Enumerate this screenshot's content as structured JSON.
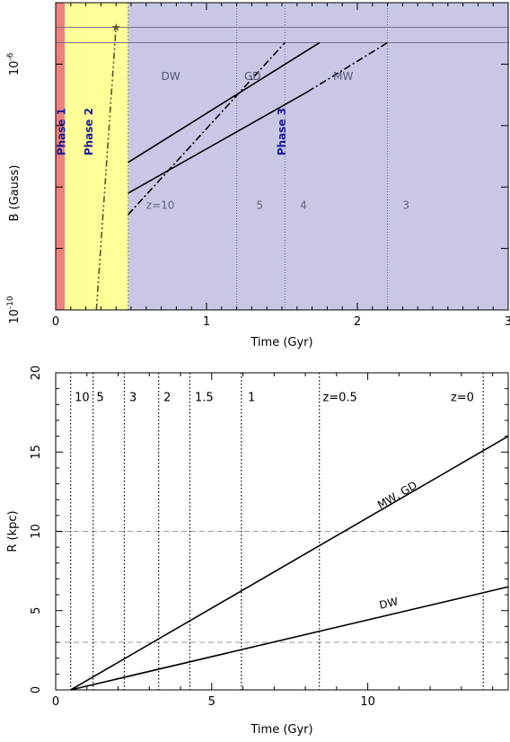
{
  "chart_data": [
    {
      "type": "line",
      "xlabel": "Time (Gyr)",
      "ylabel": "B (Gauss)",
      "xlim": [
        0,
        3
      ],
      "ylog_range": [
        -10,
        -5
      ],
      "x_ticks": [
        0,
        1,
        2,
        3
      ],
      "x_tick_labels": [
        "0",
        "1",
        "2",
        "3"
      ],
      "y_tick_labels": [
        {
          "label": "10",
          "exp": "-6",
          "logv": -6
        },
        {
          "label": "10",
          "exp": "-10",
          "logv": -10
        }
      ],
      "bands": [
        {
          "x0": 0,
          "x1": 0.06,
          "color": "#f08080"
        },
        {
          "x0": 0.06,
          "x1": 0.48,
          "color": "#ffff99"
        },
        {
          "x0": 0.48,
          "x1": 3,
          "color": "#c8c8e6"
        }
      ],
      "phase_labels": [
        {
          "text": "Phase 1",
          "x": 0.04
        },
        {
          "text": "Phase 2",
          "x": 0.22
        },
        {
          "text": "Phase 3",
          "x": 1.5
        }
      ],
      "hlines": [
        -5.4,
        -5.65
      ],
      "redshift_lines": [
        1.2,
        1.52,
        2.2
      ],
      "redshift_labels": [
        {
          "text": "z=10",
          "x": 0.6
        },
        {
          "text": "5",
          "x": 1.33
        },
        {
          "text": "4",
          "x": 1.62
        },
        {
          "text": "3",
          "x": 2.3
        }
      ],
      "series": [
        {
          "name": "DW",
          "label_at": [
            0.7,
            -6.2
          ],
          "style": "solid",
          "points": [
            [
              0.48,
              -7.6
            ],
            [
              1.75,
              -5.65
            ]
          ]
        },
        {
          "name": "GD",
          "label_at": [
            1.25,
            -6.2
          ],
          "style": "dashdot",
          "points": [
            [
              0.48,
              -8.45
            ],
            [
              1.52,
              -5.65
            ]
          ]
        },
        {
          "name": "MW",
          "label_at": [
            1.84,
            -6.2
          ],
          "style": "solid-then-dashdot",
          "points": [
            [
              0.48,
              -8.1
            ],
            [
              1.67,
              -6.45
            ],
            [
              2.2,
              -5.65
            ]
          ],
          "break_index": 1
        },
        {
          "name": "",
          "style": "dashdotdot",
          "color": "#555522",
          "points": [
            [
              0.27,
              -10
            ],
            [
              0.4,
              -5.4
            ]
          ],
          "marker": "star"
        }
      ]
    },
    {
      "type": "line",
      "xlabel": "Time (Gyr)",
      "ylabel": "R (kpc)",
      "xlim": [
        0,
        14.5
      ],
      "ylim": [
        0,
        20
      ],
      "x_ticks": [
        0,
        5,
        10
      ],
      "x_tick_labels": [
        "0",
        "5",
        "10"
      ],
      "y_ticks": [
        0,
        5,
        10,
        15,
        20
      ],
      "y_tick_labels": [
        "0",
        "5",
        "10",
        "15",
        "20"
      ],
      "hlines": [
        3,
        10
      ],
      "redshift_lines": [
        0.48,
        1.2,
        2.2,
        3.3,
        4.3,
        5.95,
        8.45,
        13.7
      ],
      "redshift_labels": [
        {
          "text": "10",
          "x": 0.55
        },
        {
          "text": "5",
          "x": 1.25
        },
        {
          "text": "3",
          "x": 2.3
        },
        {
          "text": "2",
          "x": 3.4
        },
        {
          "text": "1.5",
          "x": 4.4
        },
        {
          "text": "1",
          "x": 6.1
        },
        {
          "text": "z=0.5",
          "x": 8.5
        },
        {
          "text": "z=0",
          "x": 12.6
        }
      ],
      "series": [
        {
          "name": "MW, GD",
          "label": "MW, GD",
          "label_at": [
            10.4,
            11.4
          ],
          "points": [
            [
              0.48,
              0
            ],
            [
              14.5,
              16
            ]
          ]
        },
        {
          "name": "DW",
          "label": "DW",
          "label_at": [
            10.4,
            5.1
          ],
          "points": [
            [
              0.48,
              0
            ],
            [
              14.5,
              6.5
            ]
          ]
        }
      ]
    }
  ]
}
